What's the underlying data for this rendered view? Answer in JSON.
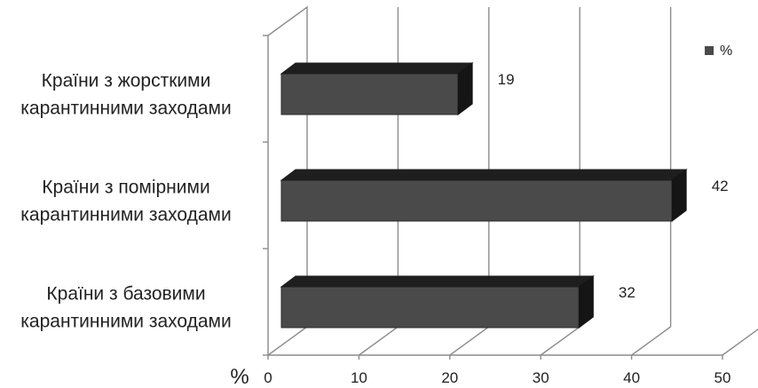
{
  "chart_data": {
    "type": "bar",
    "orientation": "horizontal",
    "style": "3d",
    "x_unit_label": "%",
    "categories": [
      [
        "Країни з жорсткими",
        "карантинними заходами"
      ],
      [
        "Країни з помірними",
        "карантинними заходами"
      ],
      [
        "Країни з базовими",
        "карантинними заходами"
      ]
    ],
    "series": [
      {
        "name": "%",
        "values": [
          19,
          42,
          32
        ],
        "color": "#4a4a4a"
      }
    ],
    "xlim": [
      0,
      50
    ],
    "xticks": [
      0,
      10,
      20,
      30,
      40,
      50
    ],
    "grid": true,
    "legend": "top-right"
  }
}
